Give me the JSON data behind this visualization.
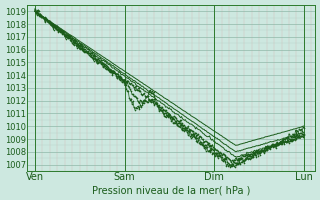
{
  "xlabel": "Pression niveau de la mer( hPa )",
  "ylim": [
    1006.5,
    1019.5
  ],
  "yticks": [
    1007,
    1008,
    1009,
    1010,
    1011,
    1012,
    1013,
    1014,
    1015,
    1016,
    1017,
    1018,
    1019
  ],
  "xlim": [
    -8,
    300
  ],
  "bg_color": "#cde8e0",
  "line_color": "#1a5c1a",
  "day_positions": [
    0,
    96,
    192,
    288
  ],
  "day_labels": [
    "Ven",
    "Sam",
    "Dim",
    "Lun"
  ],
  "minor_v_step": 8,
  "figsize": [
    3.2,
    2.0
  ],
  "dpi": 100
}
